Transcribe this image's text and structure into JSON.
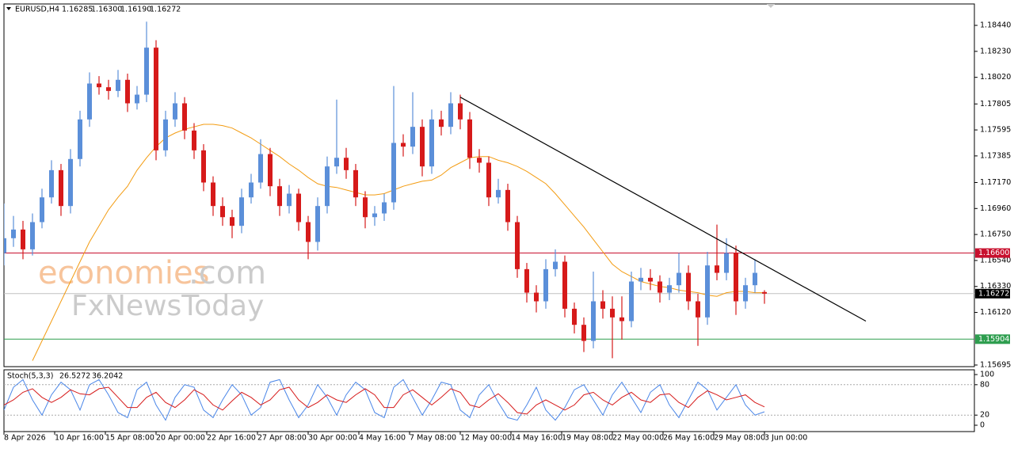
{
  "chart_data": [
    {
      "type": "candlestick",
      "title": "EURUSD,H4",
      "ohlc_labels": [
        "1.16285",
        "1.16300",
        "1.16190",
        "1.16272"
      ],
      "up_color": "#5b8fd9",
      "down_color": "#d61a1a",
      "xlim": [
        0,
        306.25
      ],
      "xticks": [
        {
          "value": 0,
          "label": "8 Apr 2026"
        },
        {
          "value": 16,
          "label": "10 Apr 16:00"
        },
        {
          "value": 32,
          "label": "15 Apr 08:00"
        },
        {
          "value": 48,
          "label": "20 Apr 00:00"
        },
        {
          "value": 64,
          "label": "22 Apr 16:00"
        },
        {
          "value": 80,
          "label": "27 Apr 08:00"
        },
        {
          "value": 96,
          "label": "30 Apr 00:00"
        },
        {
          "value": 112,
          "label": "4 May 16:00"
        },
        {
          "value": 128,
          "label": "7 May 08:00"
        },
        {
          "value": 144,
          "label": "12 May 00:00"
        },
        {
          "value": 160,
          "label": "14 May 16:00"
        },
        {
          "value": 176,
          "label": "19 May 08:00"
        },
        {
          "value": 192,
          "label": "22 May 00:00"
        },
        {
          "value": 208,
          "label": "26 May 16:00"
        },
        {
          "value": 224,
          "label": "29 May 08:00"
        },
        {
          "value": 240,
          "label": "3 Jun 00:00"
        }
      ],
      "ylim": [
        1.15682,
        1.18613
      ],
      "yticks": [
        {
          "value": 1.1844,
          "label": "1.18440"
        },
        {
          "value": 1.1823,
          "label": "1.18230"
        },
        {
          "value": 1.1802,
          "label": "1.18020"
        },
        {
          "value": 1.17805,
          "label": "1.17805"
        },
        {
          "value": 1.17595,
          "label": "1.17595"
        },
        {
          "value": 1.17385,
          "label": "1.17385"
        },
        {
          "value": 1.1717,
          "label": "1.17170"
        },
        {
          "value": 1.1696,
          "label": "1.16960"
        },
        {
          "value": 1.1675,
          "label": "1.16750"
        },
        {
          "value": 1.1654,
          "label": "1.16540"
        },
        {
          "value": 1.1633,
          "label": "1.16330"
        },
        {
          "value": 1.1612,
          "label": "1.16120"
        },
        {
          "value": 1.15695,
          "label": "1.15695"
        }
      ],
      "x": [
        0,
        3,
        6,
        9,
        12,
        15,
        18,
        21,
        24,
        27,
        30,
        33,
        36,
        39,
        42,
        45,
        48,
        51,
        54,
        57,
        60,
        63,
        66,
        69,
        72,
        75,
        78,
        81,
        84,
        87,
        90,
        93,
        96,
        99,
        102,
        105,
        108,
        111,
        114,
        117,
        120,
        123,
        126,
        129,
        132,
        135,
        138,
        141,
        144,
        147,
        150,
        153,
        156,
        159,
        162,
        165,
        168,
        171,
        174,
        177,
        180,
        183,
        186,
        189,
        192,
        195,
        198,
        201,
        204,
        207,
        210,
        213,
        216,
        219,
        222,
        225,
        228,
        231,
        234,
        237,
        240
      ],
      "candles": [
        [
          1.166,
          1.17,
          1.165,
          1.1672
        ],
        [
          1.1672,
          1.169,
          1.1665,
          1.1679
        ],
        [
          1.1679,
          1.1686,
          1.1655,
          1.1663
        ],
        [
          1.1663,
          1.1692,
          1.1658,
          1.1685
        ],
        [
          1.1685,
          1.1712,
          1.168,
          1.1705
        ],
        [
          1.1705,
          1.1735,
          1.17,
          1.1727
        ],
        [
          1.1727,
          1.1732,
          1.169,
          1.1698
        ],
        [
          1.1698,
          1.1744,
          1.1692,
          1.1736
        ],
        [
          1.1736,
          1.1775,
          1.173,
          1.1768
        ],
        [
          1.1768,
          1.1806,
          1.1762,
          1.1797
        ],
        [
          1.1797,
          1.1803,
          1.1788,
          1.1794
        ],
        [
          1.1794,
          1.18,
          1.1784,
          1.1791
        ],
        [
          1.1791,
          1.1808,
          1.1786,
          1.18
        ],
        [
          1.18,
          1.1805,
          1.1774,
          1.1781
        ],
        [
          1.1781,
          1.1795,
          1.1776,
          1.1788
        ],
        [
          1.1788,
          1.1847,
          1.1782,
          1.1826
        ],
        [
          1.1826,
          1.1832,
          1.1735,
          1.1743
        ],
        [
          1.1743,
          1.1775,
          1.1738,
          1.1768
        ],
        [
          1.1768,
          1.179,
          1.1762,
          1.1781
        ],
        [
          1.1781,
          1.1786,
          1.1752,
          1.1759
        ],
        [
          1.1759,
          1.1765,
          1.1736,
          1.1743
        ],
        [
          1.1743,
          1.1748,
          1.171,
          1.1717
        ],
        [
          1.1717,
          1.1722,
          1.169,
          1.1698
        ],
        [
          1.1698,
          1.1705,
          1.1682,
          1.1689
        ],
        [
          1.1689,
          1.1695,
          1.1672,
          1.1682
        ],
        [
          1.1682,
          1.1712,
          1.1676,
          1.1705
        ],
        [
          1.1705,
          1.1724,
          1.17,
          1.1717
        ],
        [
          1.1717,
          1.1752,
          1.1712,
          1.174
        ],
        [
          1.174,
          1.1745,
          1.1706,
          1.1714
        ],
        [
          1.1714,
          1.172,
          1.169,
          1.1698
        ],
        [
          1.1698,
          1.1715,
          1.1692,
          1.1708
        ],
        [
          1.1708,
          1.1712,
          1.1678,
          1.1685
        ],
        [
          1.1685,
          1.169,
          1.1655,
          1.1669
        ],
        [
          1.1669,
          1.1705,
          1.1662,
          1.1698
        ],
        [
          1.1698,
          1.1738,
          1.1692,
          1.173
        ],
        [
          1.173,
          1.1784,
          1.1724,
          1.1737
        ],
        [
          1.1737,
          1.1745,
          1.172,
          1.1727
        ],
        [
          1.1727,
          1.1732,
          1.1698,
          1.1705
        ],
        [
          1.1705,
          1.171,
          1.168,
          1.1689
        ],
        [
          1.1689,
          1.1698,
          1.1682,
          1.1692
        ],
        [
          1.1692,
          1.1708,
          1.1686,
          1.1701
        ],
        [
          1.1701,
          1.1795,
          1.1695,
          1.1749
        ],
        [
          1.1749,
          1.1756,
          1.1738,
          1.1746
        ],
        [
          1.1746,
          1.179,
          1.174,
          1.1762
        ],
        [
          1.1762,
          1.1768,
          1.1722,
          1.173
        ],
        [
          1.173,
          1.1776,
          1.1724,
          1.1768
        ],
        [
          1.1768,
          1.1775,
          1.1755,
          1.1762
        ],
        [
          1.1762,
          1.179,
          1.1756,
          1.1781
        ],
        [
          1.1781,
          1.1788,
          1.176,
          1.1768
        ],
        [
          1.1768,
          1.1774,
          1.1728,
          1.1737
        ],
        [
          1.1737,
          1.1744,
          1.1725,
          1.1733
        ],
        [
          1.1733,
          1.1738,
          1.1698,
          1.1705
        ],
        [
          1.1705,
          1.172,
          1.17,
          1.1711
        ],
        [
          1.1711,
          1.1716,
          1.1678,
          1.1685
        ],
        [
          1.1685,
          1.169,
          1.164,
          1.1647
        ],
        [
          1.1647,
          1.1652,
          1.162,
          1.1628
        ],
        [
          1.1628,
          1.1634,
          1.1612,
          1.1621
        ],
        [
          1.1621,
          1.1655,
          1.1615,
          1.1647
        ],
        [
          1.1647,
          1.1663,
          1.1641,
          1.1653
        ],
        [
          1.1653,
          1.1658,
          1.1608,
          1.1615
        ],
        [
          1.1615,
          1.162,
          1.1595,
          1.1602
        ],
        [
          1.1602,
          1.1608,
          1.158,
          1.1589
        ],
        [
          1.1589,
          1.1645,
          1.1583,
          1.1621
        ],
        [
          1.1621,
          1.163,
          1.1607,
          1.1615
        ],
        [
          1.1615,
          1.1625,
          1.1575,
          1.1608
        ],
        [
          1.1608,
          1.1625,
          1.159,
          1.1605
        ],
        [
          1.1605,
          1.1645,
          1.16,
          1.1637
        ],
        [
          1.1637,
          1.1648,
          1.163,
          1.164
        ],
        [
          1.164,
          1.1647,
          1.163,
          1.1637
        ],
        [
          1.1637,
          1.1642,
          1.162,
          1.1628
        ],
        [
          1.1628,
          1.164,
          1.1622,
          1.1634
        ],
        [
          1.1634,
          1.166,
          1.1628,
          1.1644
        ],
        [
          1.1644,
          1.165,
          1.1614,
          1.1621
        ],
        [
          1.1621,
          1.1627,
          1.1585,
          1.1608
        ],
        [
          1.1608,
          1.1661,
          1.1602,
          1.165
        ],
        [
          1.165,
          1.1683,
          1.1638,
          1.1644
        ],
        [
          1.1644,
          1.1672,
          1.1638,
          1.166
        ],
        [
          1.166,
          1.1666,
          1.161,
          1.1621
        ],
        [
          1.1621,
          1.164,
          1.1615,
          1.1634
        ],
        [
          1.1634,
          1.1655,
          1.1628,
          1.1644
        ],
        [
          1.16285,
          1.163,
          1.1619,
          1.16272
        ]
      ],
      "series": [
        {
          "color": "#f39c12",
          "values": [
            null,
            null,
            null,
            1.1573,
            1.1589,
            1.1605,
            1.1621,
            1.1637,
            1.1653,
            1.1669,
            1.1682,
            1.1695,
            1.1705,
            1.1714,
            1.1727,
            1.1737,
            1.1746,
            1.1753,
            1.1757,
            1.176,
            1.1762,
            1.1764,
            1.1764,
            1.1763,
            1.1761,
            1.1757,
            1.1753,
            1.1748,
            1.1743,
            1.1738,
            1.1732,
            1.1727,
            1.1721,
            1.1716,
            1.1714,
            1.1713,
            1.1711,
            1.1709,
            1.1707,
            1.1707,
            1.1708,
            1.1711,
            1.1714,
            1.1716,
            1.1718,
            1.1719,
            1.1723,
            1.1729,
            1.1733,
            1.1737,
            1.1738,
            1.1738,
            1.1735,
            1.1733,
            1.173,
            1.1726,
            1.1721,
            1.1716,
            1.1708,
            1.1699,
            1.169,
            1.1681,
            1.1671,
            1.1661,
            1.1651,
            1.1645,
            1.1641,
            1.1637,
            1.1635,
            1.1633,
            1.1632,
            1.163,
            1.1629,
            1.1628,
            1.1626,
            1.1625,
            1.1628,
            1.1629,
            1.1629,
            1.1628,
            1.1628
          ]
        }
      ],
      "levels": [
        {
          "value": 1.166,
          "label": "1.16600",
          "color": "#c8102e",
          "bg": "#c8102e"
        },
        {
          "value": 1.16272,
          "label": "1.16272",
          "color": "#c0c0c0",
          "bg": "#000000"
        },
        {
          "value": 1.15904,
          "label": "1.15904",
          "color": "#2e9e4f",
          "bg": "#2e9e4f"
        }
      ],
      "trendline": {
        "x": [
          144,
          272
        ],
        "y": [
          1.1786,
          1.1605
        ],
        "color": "#000000"
      },
      "watermark": {
        "brand": "economies",
        "suffix": ".com",
        "second": "FxNewsToday"
      }
    },
    {
      "type": "line",
      "title": "Stoch(5,3,3)",
      "ylim": [
        -12.5,
        109.4
      ],
      "yticks": [
        100,
        80,
        20,
        0
      ],
      "levels": [
        80,
        20
      ],
      "series": [
        {
          "color": "#4a86e8",
          "values": [
            30,
            75,
            90,
            50,
            20,
            60,
            85,
            70,
            30,
            80,
            90,
            60,
            25,
            15,
            70,
            85,
            40,
            10,
            55,
            80,
            75,
            30,
            15,
            50,
            80,
            60,
            20,
            35,
            85,
            90,
            50,
            15,
            40,
            80,
            55,
            20,
            60,
            85,
            70,
            25,
            15,
            75,
            90,
            55,
            20,
            50,
            85,
            80,
            30,
            15,
            60,
            80,
            45,
            15,
            10,
            40,
            75,
            30,
            10,
            35,
            70,
            80,
            50,
            20,
            60,
            85,
            55,
            25,
            65,
            80,
            40,
            15,
            50,
            85,
            70,
            30,
            55,
            80,
            40,
            20,
            26.5272
          ]
        },
        {
          "color": "#d61a1a",
          "values": [
            40,
            50,
            65,
            72,
            55,
            45,
            55,
            70,
            62,
            60,
            72,
            75,
            55,
            35,
            35,
            55,
            65,
            45,
            35,
            50,
            70,
            60,
            40,
            30,
            48,
            65,
            55,
            40,
            50,
            70,
            75,
            50,
            35,
            45,
            60,
            50,
            45,
            60,
            72,
            60,
            35,
            35,
            60,
            70,
            55,
            40,
            55,
            72,
            65,
            40,
            35,
            50,
            62,
            45,
            25,
            22,
            40,
            50,
            40,
            30,
            40,
            60,
            65,
            50,
            40,
            55,
            65,
            50,
            45,
            60,
            62,
            45,
            35,
            55,
            68,
            60,
            50,
            55,
            60,
            45,
            36.2042
          ]
        }
      ]
    }
  ]
}
